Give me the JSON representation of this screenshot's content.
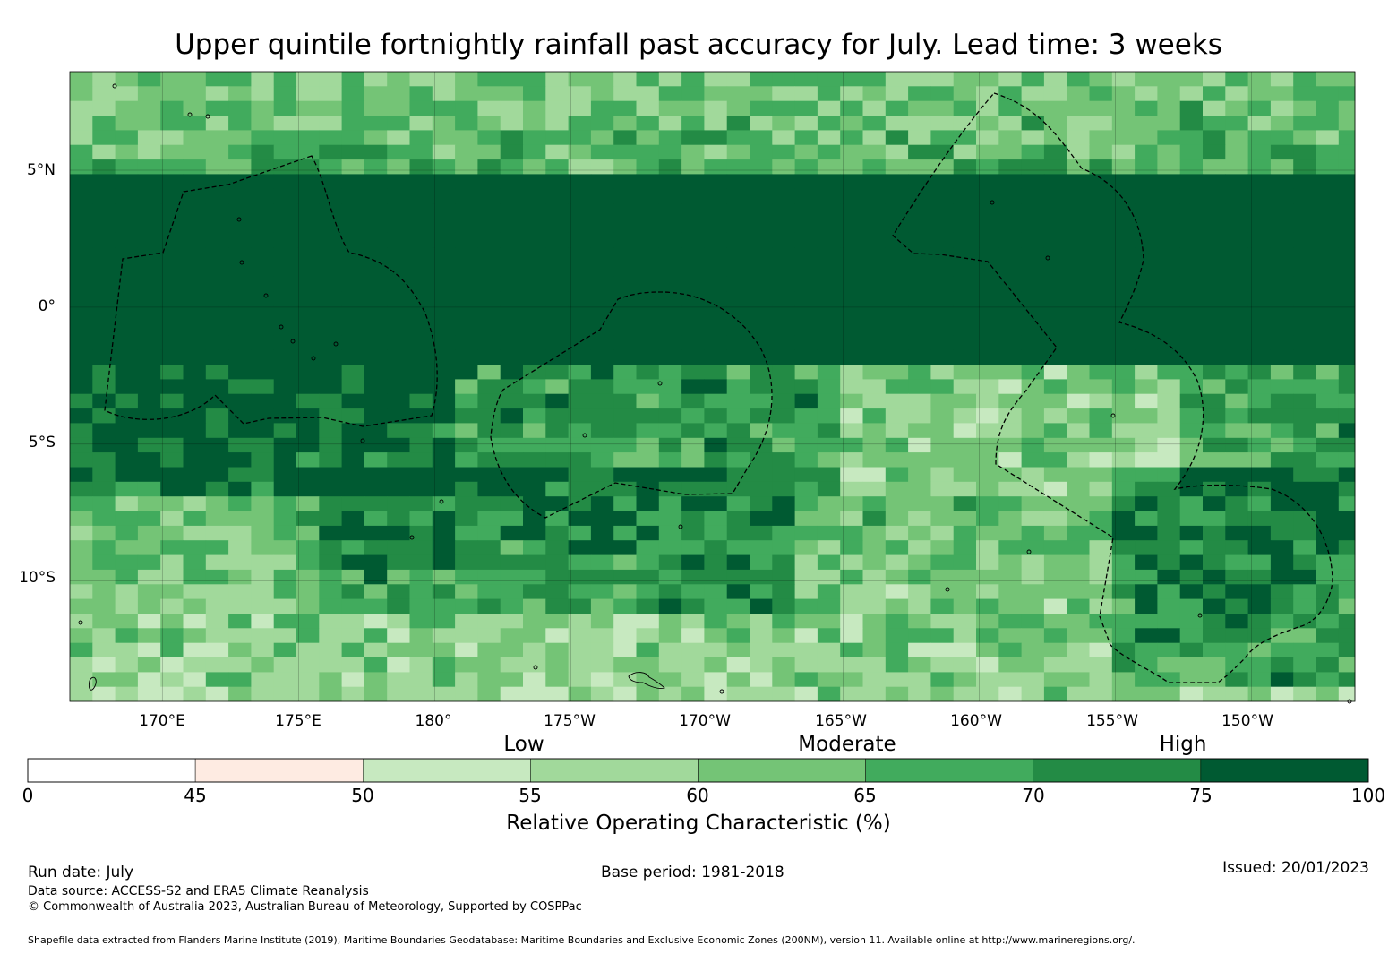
{
  "title": "Upper quintile fortnightly rainfall past accuracy for July. Lead time: 3 weeks",
  "map": {
    "lat_labels": [
      "5°N",
      "0°",
      "5°S",
      "10°S"
    ],
    "lat_values": [
      5,
      0,
      -5,
      -10
    ],
    "lon_labels": [
      "170°E",
      "175°E",
      "180°",
      "175°W",
      "170°W",
      "165°W",
      "160°W",
      "155°W",
      "150°W"
    ],
    "lon_values": [
      170,
      175,
      180,
      185,
      190,
      195,
      200,
      205,
      210
    ],
    "extent": {
      "lon_min": 166.6,
      "lon_max": 213.8,
      "lat_min": -14.4,
      "lat_max": 8.6
    }
  },
  "colorbar": {
    "category_labels": [
      "Low",
      "Moderate",
      "High"
    ],
    "ticks": [
      "0",
      "45",
      "50",
      "55",
      "60",
      "65",
      "70",
      "75",
      "100"
    ],
    "bins": [
      {
        "from": 0,
        "to": 45,
        "color": "#ffffff"
      },
      {
        "from": 45,
        "to": 50,
        "color": "#feebe2"
      },
      {
        "from": 50,
        "to": 55,
        "color": "#c7e9c0"
      },
      {
        "from": 55,
        "to": 60,
        "color": "#a1d99b"
      },
      {
        "from": 60,
        "to": 65,
        "color": "#74c476"
      },
      {
        "from": 65,
        "to": 70,
        "color": "#41ab5d"
      },
      {
        "from": 70,
        "to": 75,
        "color": "#238b45"
      },
      {
        "from": 75,
        "to": 100,
        "color": "#005a32"
      }
    ],
    "label": "Relative Operating Characteristic (%)"
  },
  "footer": {
    "run_date": "Run date: July",
    "base_period": "Base period: 1981-2018",
    "issued": "Issued: 20/01/2023",
    "data_source": "Data source: ACCESS-S2 and ERA5 Climate Reanalysis",
    "copyright": "© Commonwealth of Australia 2023, Australian Bureau of Meteorology, Supported by COSPPac",
    "shapefile": "Shapefile data extracted from Flanders Marine Institute (2019), Maritime Boundaries Geodatabase: Maritime Boundaries and Exclusive Economic Zones (200NM), version 11. Available online at http://www.marineregions.org/."
  }
}
